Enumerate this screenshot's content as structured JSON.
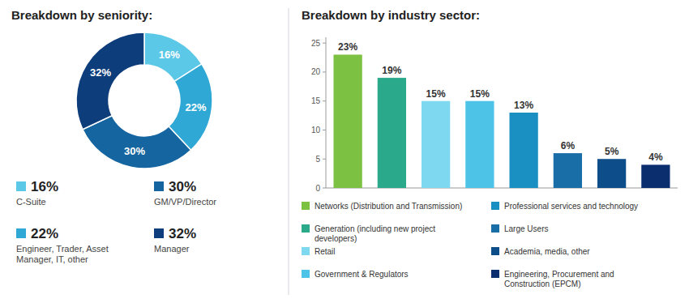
{
  "chart_data": [
    {
      "type": "donut",
      "title": "Breakdown by seniority:",
      "categories": [
        "C-Suite",
        "Engineer, Trader, Asset\nManager, IT, other",
        "GM/VP/Director",
        "Manager"
      ],
      "values": [
        16,
        22,
        30,
        32
      ],
      "value_labels": [
        "16%",
        "22%",
        "30%",
        "32%"
      ],
      "colors": [
        "#5bc8e8",
        "#2fa8d5",
        "#1565a0",
        "#0d3d7a"
      ],
      "data_labels": true,
      "legend": "bottom"
    },
    {
      "type": "bar",
      "title": "Breakdown by industry sector:",
      "categories": [
        "Networks (Distribution and Transmission)",
        "Generation (including new project\ndevelopers)",
        "Retail",
        "Government & Regulators",
        "Professional services and technology",
        "Large Users",
        "Academia, media, other",
        "Engineering, Procurement and\nConstruction (EPCM)"
      ],
      "values": [
        23,
        19,
        15,
        15,
        13,
        6,
        5,
        4
      ],
      "value_labels": [
        "23%",
        "19%",
        "15%",
        "15%",
        "13%",
        "6%",
        "5%",
        "4%"
      ],
      "colors": [
        "#7dc142",
        "#2aaa8a",
        "#7dd8f0",
        "#4ec3e8",
        "#1a90c2",
        "#1a6ea8",
        "#0d4d8a",
        "#0a2e6e"
      ],
      "ylim": [
        0,
        26
      ],
      "yticks": [
        0,
        5,
        10,
        15,
        20,
        25
      ],
      "grid": false,
      "data_labels": true,
      "tick_labels": "y",
      "legend": "bottom"
    }
  ]
}
